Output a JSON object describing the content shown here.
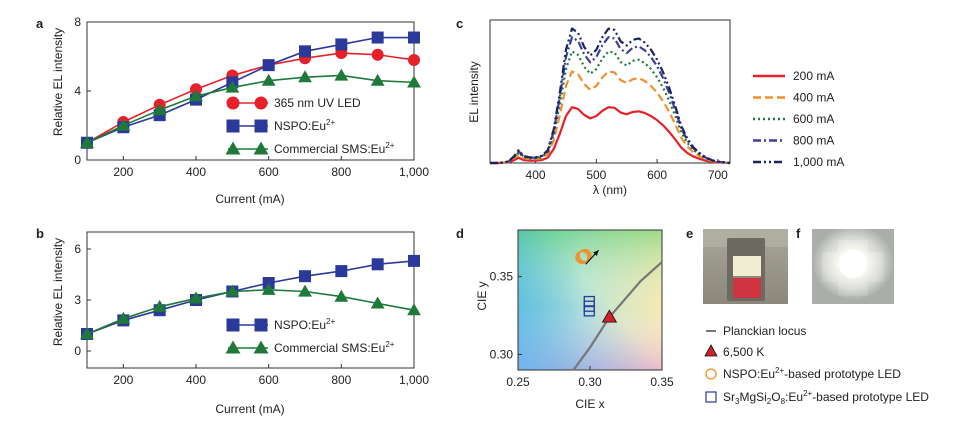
{
  "chart_data": [
    {
      "panel": "a",
      "type": "line",
      "xlabel": "Current (mA)",
      "ylabel": "Relative EL intensity",
      "xlim": [
        100,
        1000
      ],
      "ylim": [
        0,
        8
      ],
      "x_ticks": [
        200,
        400,
        600,
        800,
        1000
      ],
      "x_tick_labels": [
        "200",
        "400",
        "600",
        "800",
        "1,000"
      ],
      "y_ticks": [
        0,
        4,
        8
      ],
      "y_tick_labels": [
        "0",
        "4",
        "8"
      ],
      "x": [
        100,
        200,
        300,
        400,
        500,
        600,
        700,
        800,
        900,
        1000
      ],
      "series": [
        {
          "name": "365 nm UV LED",
          "marker": "circle",
          "color": "#e8202a",
          "values": [
            1.0,
            2.2,
            3.2,
            4.1,
            4.9,
            5.5,
            5.9,
            6.2,
            6.1,
            5.8
          ]
        },
        {
          "name": "NSPO:Eu2+",
          "name_main": "NSPO:Eu",
          "name_sup": "2+",
          "marker": "square",
          "color": "#2b3a9a",
          "values": [
            1.0,
            1.9,
            2.6,
            3.5,
            4.5,
            5.5,
            6.3,
            6.7,
            7.1,
            7.1
          ]
        },
        {
          "name": "Commercial SMS:Eu2+",
          "name_main": "Commercial SMS:Eu",
          "name_sup": "2+",
          "marker": "triangle",
          "color": "#1f7a3a",
          "values": [
            1.0,
            2.0,
            2.9,
            3.7,
            4.2,
            4.6,
            4.8,
            4.9,
            4.6,
            4.5
          ]
        }
      ]
    },
    {
      "panel": "b",
      "type": "line",
      "xlabel": "Current (mA)",
      "ylabel": "Relative EL intensity",
      "xlim": [
        100,
        1000
      ],
      "ylim": [
        -1,
        7
      ],
      "x_ticks": [
        200,
        400,
        600,
        800,
        1000
      ],
      "x_tick_labels": [
        "200",
        "400",
        "600",
        "800",
        "1,000"
      ],
      "y_ticks": [
        0,
        3,
        6
      ],
      "y_tick_labels": [
        "0",
        "3",
        "6"
      ],
      "x": [
        100,
        200,
        300,
        400,
        500,
        600,
        700,
        800,
        900,
        1000
      ],
      "series": [
        {
          "name": "NSPO:Eu2+",
          "name_main": "NSPO:Eu",
          "name_sup": "2+",
          "marker": "square",
          "color": "#2b3a9a",
          "values": [
            1.0,
            1.8,
            2.4,
            3.0,
            3.5,
            4.0,
            4.4,
            4.7,
            5.1,
            5.3
          ]
        },
        {
          "name": "Commercial SMS:Eu2+",
          "name_main": "Commercial SMS:Eu",
          "name_sup": "2+",
          "marker": "triangle",
          "color": "#1f7a3a",
          "values": [
            1.0,
            1.9,
            2.6,
            3.1,
            3.5,
            3.6,
            3.5,
            3.2,
            2.8,
            2.4
          ]
        }
      ]
    },
    {
      "panel": "c",
      "type": "line",
      "xlabel": "λ (nm)",
      "ylabel": "EL intensity",
      "xlim": [
        325,
        720
      ],
      "ylim": [
        0,
        1.0
      ],
      "x_ticks": [
        400,
        500,
        600,
        700
      ],
      "x_tick_labels": [
        "400",
        "500",
        "600",
        "700"
      ],
      "x": [
        325,
        340,
        355,
        365,
        372,
        380,
        390,
        400,
        410,
        420,
        430,
        440,
        450,
        460,
        470,
        480,
        490,
        500,
        510,
        520,
        530,
        540,
        550,
        560,
        570,
        580,
        590,
        600,
        610,
        620,
        630,
        640,
        650,
        660,
        670,
        680,
        690,
        700,
        720
      ],
      "profile": [
        0.0,
        0.0,
        0.01,
        0.05,
        0.09,
        0.05,
        0.04,
        0.04,
        0.05,
        0.09,
        0.24,
        0.5,
        0.8,
        0.95,
        0.92,
        0.82,
        0.76,
        0.8,
        0.89,
        0.95,
        0.94,
        0.86,
        0.83,
        0.87,
        0.88,
        0.85,
        0.8,
        0.73,
        0.64,
        0.53,
        0.4,
        0.26,
        0.17,
        0.11,
        0.07,
        0.04,
        0.02,
        0.01,
        0.0
      ],
      "series": [
        {
          "name": "200 mA",
          "color": "#e8202a",
          "dash": "solid",
          "peak": 0.39
        },
        {
          "name": "400 mA",
          "color": "#f0902a",
          "dash": "dash",
          "peak": 0.64
        },
        {
          "name": "600 mA",
          "color": "#1f7a3a",
          "dash": "dot",
          "peak": 0.78
        },
        {
          "name": "800 mA",
          "color": "#3a3f9c",
          "dash": "dashdot",
          "peak": 0.88
        },
        {
          "name": "1,000 mA",
          "color": "#1c2360",
          "dash": "dashdotdot",
          "peak": 0.94
        }
      ]
    },
    {
      "panel": "d",
      "type": "scatter",
      "xlabel": "CIE x",
      "ylabel": "CIE y",
      "xlim": [
        0.25,
        0.35
      ],
      "ylim": [
        0.29,
        0.38
      ],
      "x_ticks": [
        0.25,
        0.3,
        0.35
      ],
      "x_tick_labels": [
        "0.25",
        "0.30",
        "0.35"
      ],
      "y_ticks": [
        0.3,
        0.35
      ],
      "y_tick_labels": [
        "0.30",
        "0.35"
      ],
      "planckian_locus": {
        "x": [
          0.2885,
          0.3,
          0.3135,
          0.335,
          0.35
        ],
        "y": [
          0.29,
          0.3045,
          0.324,
          0.347,
          0.3595
        ]
      },
      "white_point": {
        "x": 0.3135,
        "y": 0.324
      },
      "nspo_points": {
        "x": [
          0.2945,
          0.2955,
          0.2965
        ],
        "y": [
          0.3625,
          0.363,
          0.3635
        ]
      },
      "sms_points": {
        "x": [
          0.2995,
          0.2995,
          0.2995
        ],
        "y": [
          0.328,
          0.331,
          0.334
        ]
      },
      "arrow": {
        "from": [
          0.297,
          0.358
        ],
        "to": [
          0.306,
          0.367
        ]
      },
      "legend": [
        {
          "key": "locus",
          "text": "Planckian locus"
        },
        {
          "key": "white",
          "text": "6,500 K"
        },
        {
          "key": "nspo",
          "pre": "NSPO:Eu",
          "sup": "2+",
          "post": "-based prototype LED"
        },
        {
          "key": "sms",
          "pre": "Sr",
          "sub1": "3",
          "mid1": "MgSi",
          "sub2": "2",
          "mid2": "O",
          "sub3": "8",
          "mid3": ":Eu",
          "sup": "2+",
          "post": "-based prototype LED"
        }
      ]
    }
  ],
  "panel_letters": {
    "a": "a",
    "b": "b",
    "c": "c",
    "d": "d",
    "e": "e",
    "f": "f"
  },
  "photo_e": {
    "description": "prototype LED chip, off",
    "phosphor_colors": [
      "#f2efd2",
      "#d2373e"
    ]
  },
  "photo_f": {
    "description": "prototype LED chip, lit"
  }
}
